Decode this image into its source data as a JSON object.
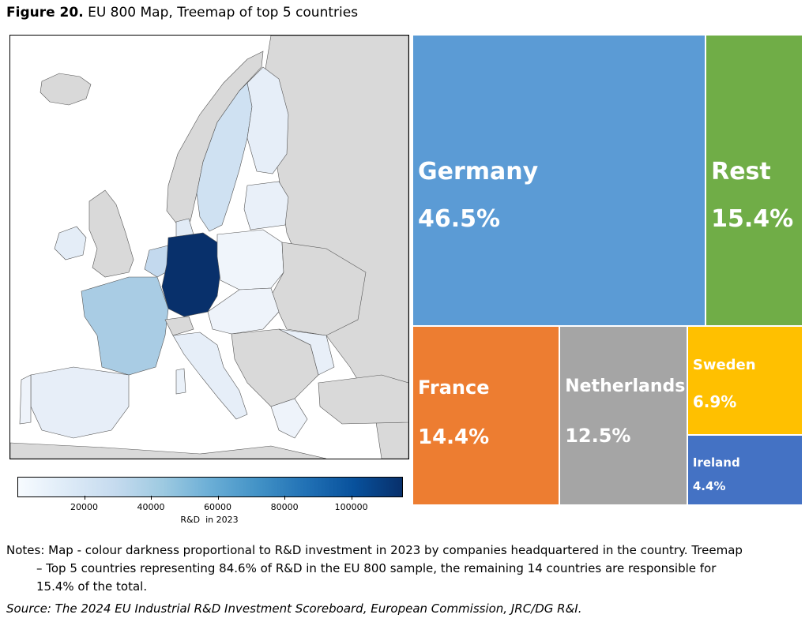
{
  "figure": {
    "label": "Figure 20.",
    "title": "EU 800 Map, Treemap of top 5 countries"
  },
  "colors": {
    "germany_map": "#08306b",
    "france_map": "#a9cce4",
    "sweden_map": "#cfe1f2",
    "light_eu": "#e6eef8",
    "non_eu": "#d9d9d9",
    "treemap_germany": "#5b9bd5",
    "treemap_rest": "#70ad47",
    "treemap_france": "#ed7d31",
    "treemap_netherlands": "#a5a5a5",
    "treemap_sweden": "#ffc000",
    "treemap_ireland": "#4472c4"
  },
  "colorbar": {
    "label": "R&D  in 2023",
    "ticks": [
      "20000",
      "40000",
      "60000",
      "80000",
      "100000"
    ],
    "tick_values": [
      20000,
      40000,
      60000,
      80000,
      100000
    ],
    "range": [
      0,
      115000
    ]
  },
  "chart_data": [
    {
      "type": "treemap",
      "categories": [
        "Germany",
        "Rest",
        "France",
        "Netherlands",
        "Sweden",
        "Ireland"
      ],
      "values": [
        46.5,
        15.4,
        14.4,
        12.5,
        6.9,
        4.4
      ],
      "labels": [
        "46.5%",
        "15.4%",
        "14.4%",
        "12.5%",
        "6.9%",
        "4.4%"
      ],
      "unit": "%"
    },
    {
      "type": "map",
      "colorbar_label": "R&D  in 2023",
      "highlighted": [
        "Germany",
        "France",
        "Sweden",
        "Netherlands",
        "Ireland"
      ]
    }
  ],
  "notes": {
    "line1": "Notes: Map - colour darkness proportional to R&D investment in 2023 by companies headquartered in the country. Treemap",
    "line2": "– Top 5 countries representing 84.6% of R&D in the EU 800 sample, the remaining 14 countries are responsible for",
    "line3": "15.4% of the total."
  },
  "source": "Source: The 2024 EU Industrial R&D Investment Scoreboard, European Commission, JRC/DG R&I."
}
